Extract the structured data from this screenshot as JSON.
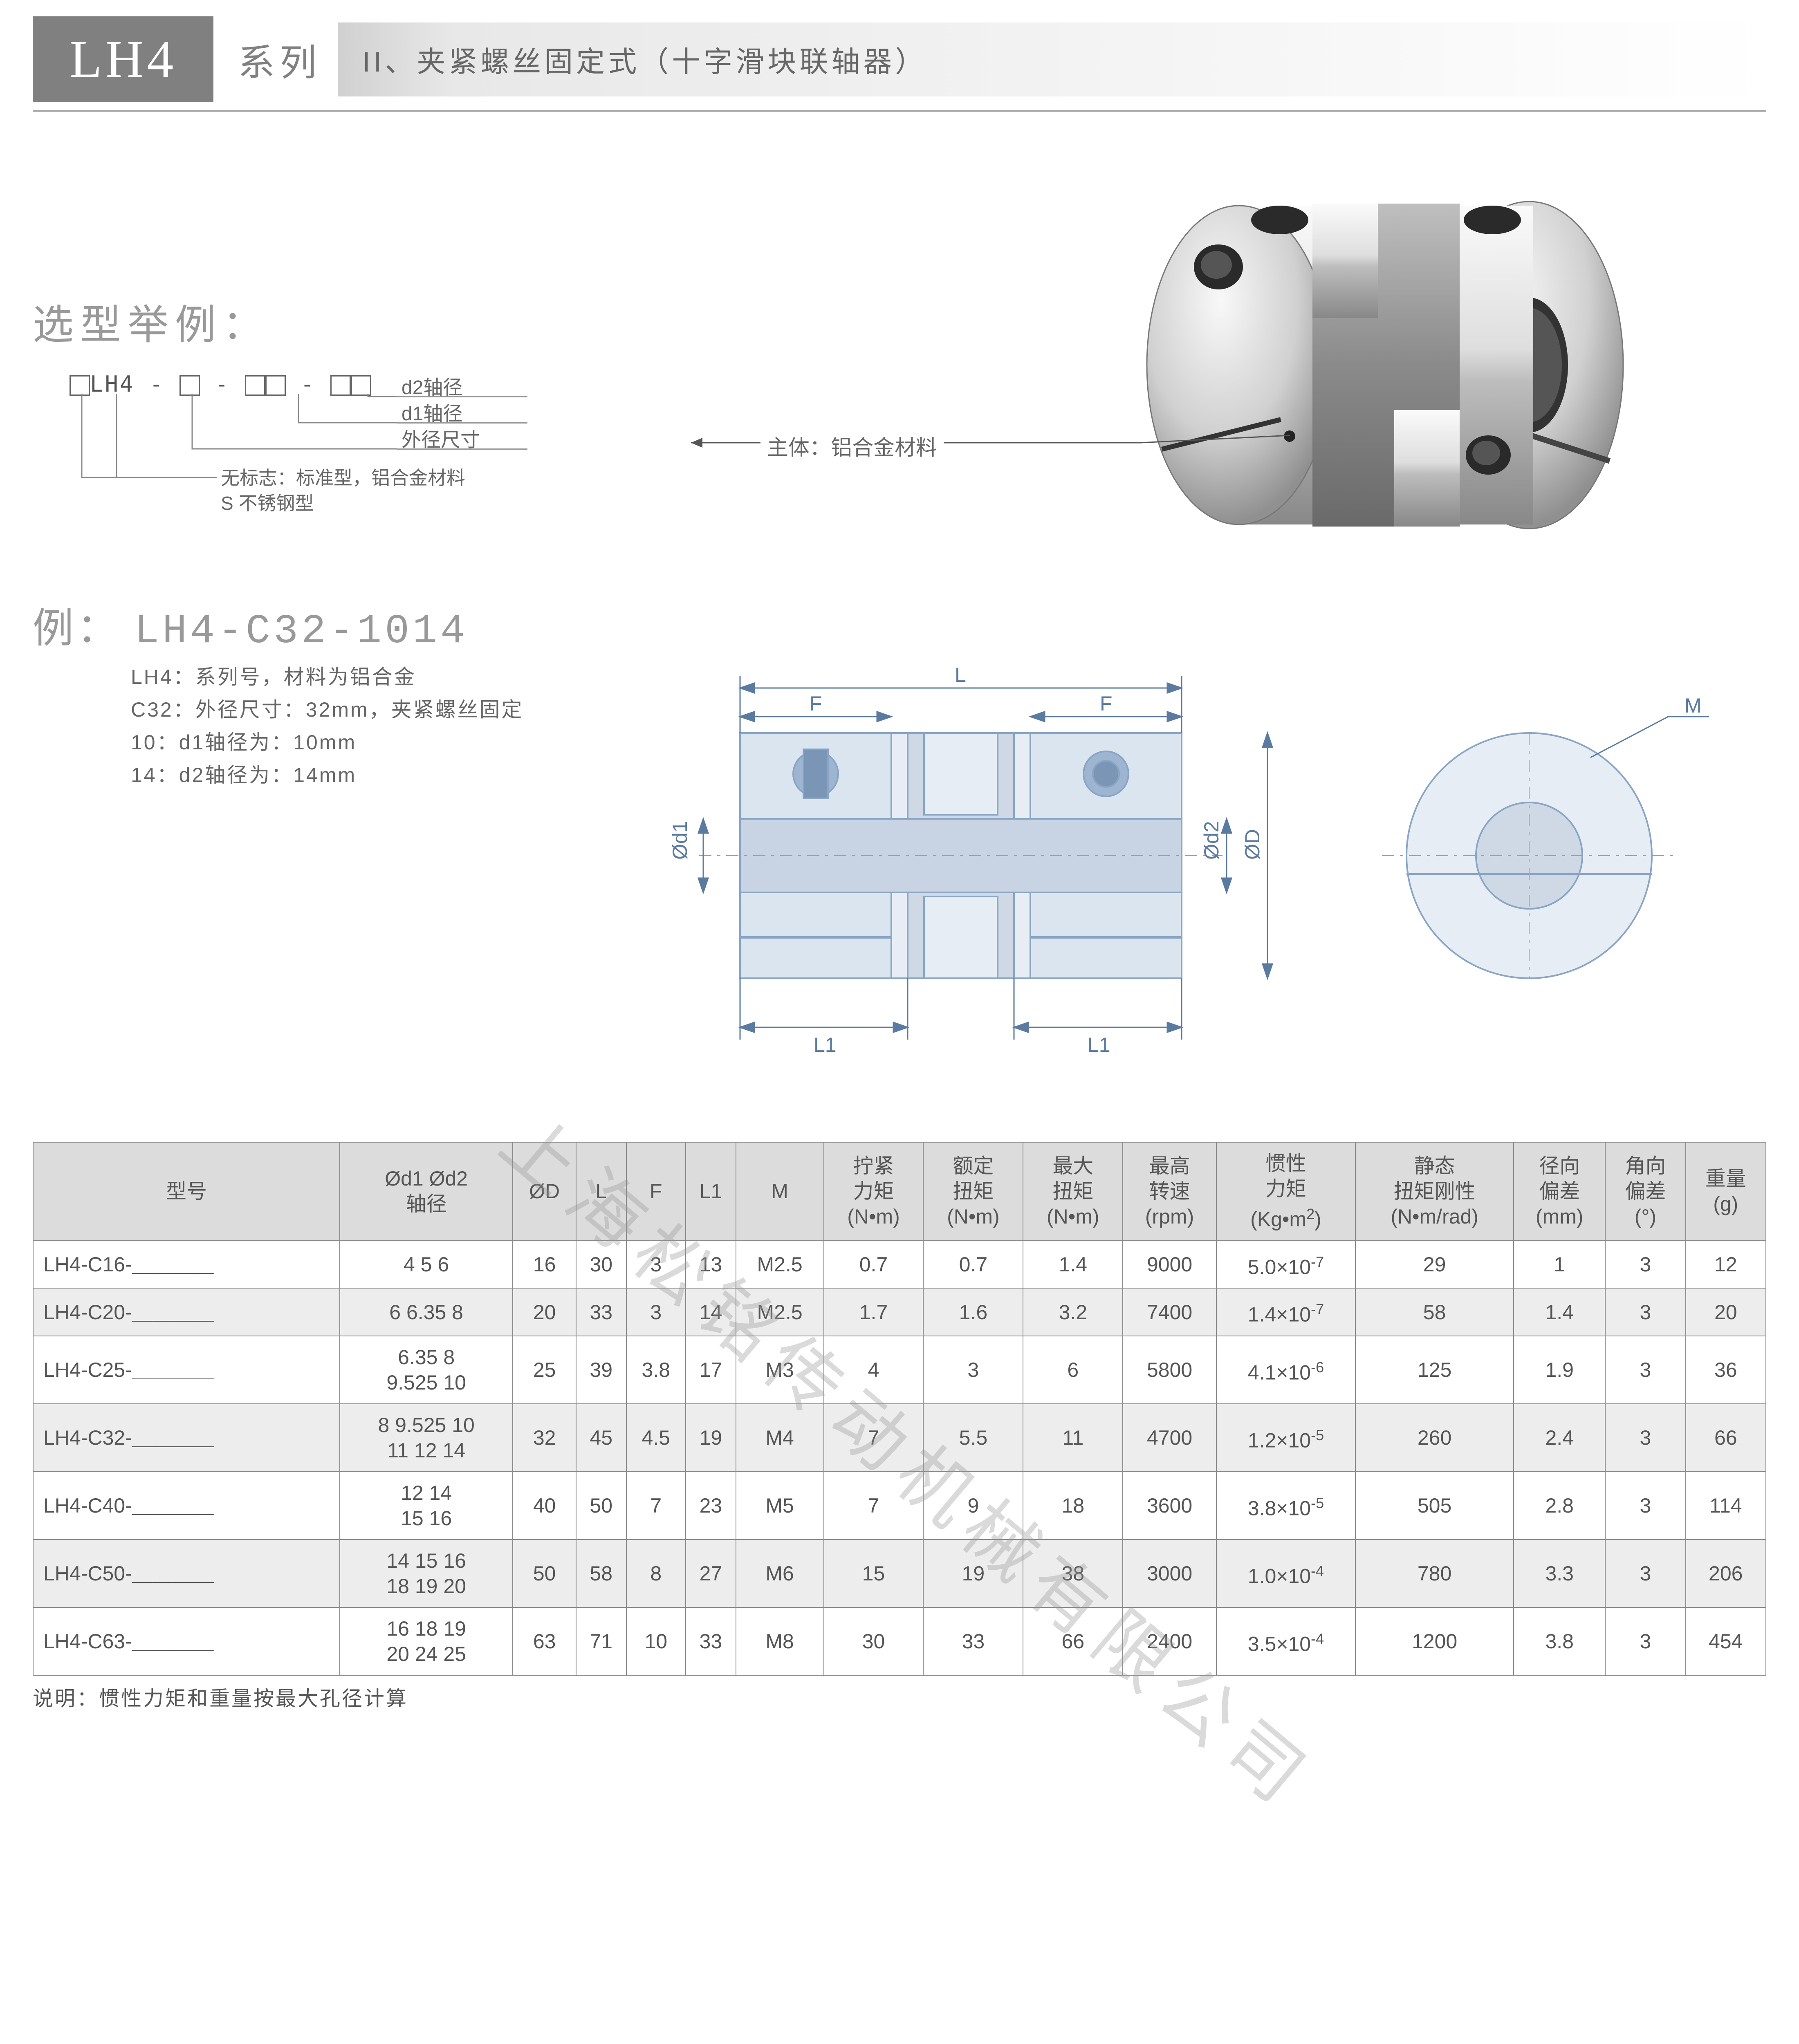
{
  "header": {
    "series": "LH4",
    "series_label": "系列",
    "subtitle": "II、夹紧螺丝固定式（十字滑块联轴器）"
  },
  "selection": {
    "title": "选型举例：",
    "code_prefix": "LH4",
    "labels": {
      "d2": "d2轴径",
      "d1": "d1轴径",
      "od": "外径尺寸",
      "mat1": "无标志：标准型，铝合金材料",
      "mat2": "S 不锈钢型"
    }
  },
  "example": {
    "title_label": "例：",
    "code": "LH4-C32-1014",
    "line1": "LH4：系列号，材料为铝合金",
    "line2": "C32：外径尺寸：32mm，夹紧螺丝固定",
    "line3": "10：d1轴径为：10mm",
    "line4": "14：d2轴径为：14mm"
  },
  "photo": {
    "callout": "主体：铝合金材料"
  },
  "drawing": {
    "L": "L",
    "F": "F",
    "L1": "L1",
    "M": "M",
    "d1": "Ød1",
    "d2": "Ød2",
    "D": "ØD"
  },
  "watermark": "上海松铭传动机械有限公司",
  "table": {
    "headers": [
      "型号",
      "Ød1 Ød2\n轴径",
      "ØD",
      "L",
      "F",
      "L1",
      "M",
      "拧紧\n力矩\n(N•m)",
      "额定\n扭矩\n(N•m)",
      "最大\n扭矩\n(N•m)",
      "最高\n转速\n(rpm)",
      "惯性\n力矩\n(Kg•m²)",
      "静态\n扭矩刚性\n(N•m/rad)",
      "径向\n偏差\n(mm)",
      "角向\n偏差\n(°)",
      "重量\n(g)"
    ],
    "rows": [
      {
        "model": "LH4-C16-＿＿＿＿",
        "shaft": "4  5  6",
        "D": "16",
        "L": "30",
        "F": "3",
        "L1": "13",
        "M": "M2.5",
        "t": "0.7",
        "rt": "0.7",
        "mt": "1.4",
        "rpm": "9000",
        "inertia": "5.0×10⁻⁷",
        "stiff": "29",
        "rad": "1",
        "ang": "3",
        "wt": "12"
      },
      {
        "model": "LH4-C20-＿＿＿＿",
        "shaft": "6  6.35  8",
        "D": "20",
        "L": "33",
        "F": "3",
        "L1": "14",
        "M": "M2.5",
        "t": "1.7",
        "rt": "1.6",
        "mt": "3.2",
        "rpm": "7400",
        "inertia": "1.4×10⁻⁷",
        "stiff": "58",
        "rad": "1.4",
        "ang": "3",
        "wt": "20"
      },
      {
        "model": "LH4-C25-＿＿＿＿",
        "shaft": "6.35  8\n9.525  10",
        "D": "25",
        "L": "39",
        "F": "3.8",
        "L1": "17",
        "M": "M3",
        "t": "4",
        "rt": "3",
        "mt": "6",
        "rpm": "5800",
        "inertia": "4.1×10⁻⁶",
        "stiff": "125",
        "rad": "1.9",
        "ang": "3",
        "wt": "36"
      },
      {
        "model": "LH4-C32-＿＿＿＿",
        "shaft": "8  9.525  10\n11  12  14",
        "D": "32",
        "L": "45",
        "F": "4.5",
        "L1": "19",
        "M": "M4",
        "t": "7",
        "rt": "5.5",
        "mt": "11",
        "rpm": "4700",
        "inertia": "1.2×10⁻⁵",
        "stiff": "260",
        "rad": "2.4",
        "ang": "3",
        "wt": "66"
      },
      {
        "model": "LH4-C40-＿＿＿＿",
        "shaft": "12  14\n15  16",
        "D": "40",
        "L": "50",
        "F": "7",
        "L1": "23",
        "M": "M5",
        "t": "7",
        "rt": "9",
        "mt": "18",
        "rpm": "3600",
        "inertia": "3.8×10⁻⁵",
        "stiff": "505",
        "rad": "2.8",
        "ang": "3",
        "wt": "114"
      },
      {
        "model": "LH4-C50-＿＿＿＿",
        "shaft": "14  15  16\n18  19  20",
        "D": "50",
        "L": "58",
        "F": "8",
        "L1": "27",
        "M": "M6",
        "t": "15",
        "rt": "19",
        "mt": "38",
        "rpm": "3000",
        "inertia": "1.0×10⁻⁴",
        "stiff": "780",
        "rad": "3.3",
        "ang": "3",
        "wt": "206"
      },
      {
        "model": "LH4-C63-＿＿＿＿",
        "shaft": "16  18  19\n20  24  25",
        "D": "63",
        "L": "71",
        "F": "10",
        "L1": "33",
        "M": "M8",
        "t": "30",
        "rt": "33",
        "mt": "66",
        "rpm": "2400",
        "inertia": "3.5×10⁻⁴",
        "stiff": "1200",
        "rad": "3.8",
        "ang": "3",
        "wt": "454"
      }
    ],
    "footnote": "说明：惯性力矩和重量按最大孔径计算"
  },
  "colors": {
    "gray_box": "#808080",
    "gray_text": "#999999",
    "line": "#888888",
    "header_bg": "#dcdcdc",
    "row_alt": "#ededed"
  }
}
